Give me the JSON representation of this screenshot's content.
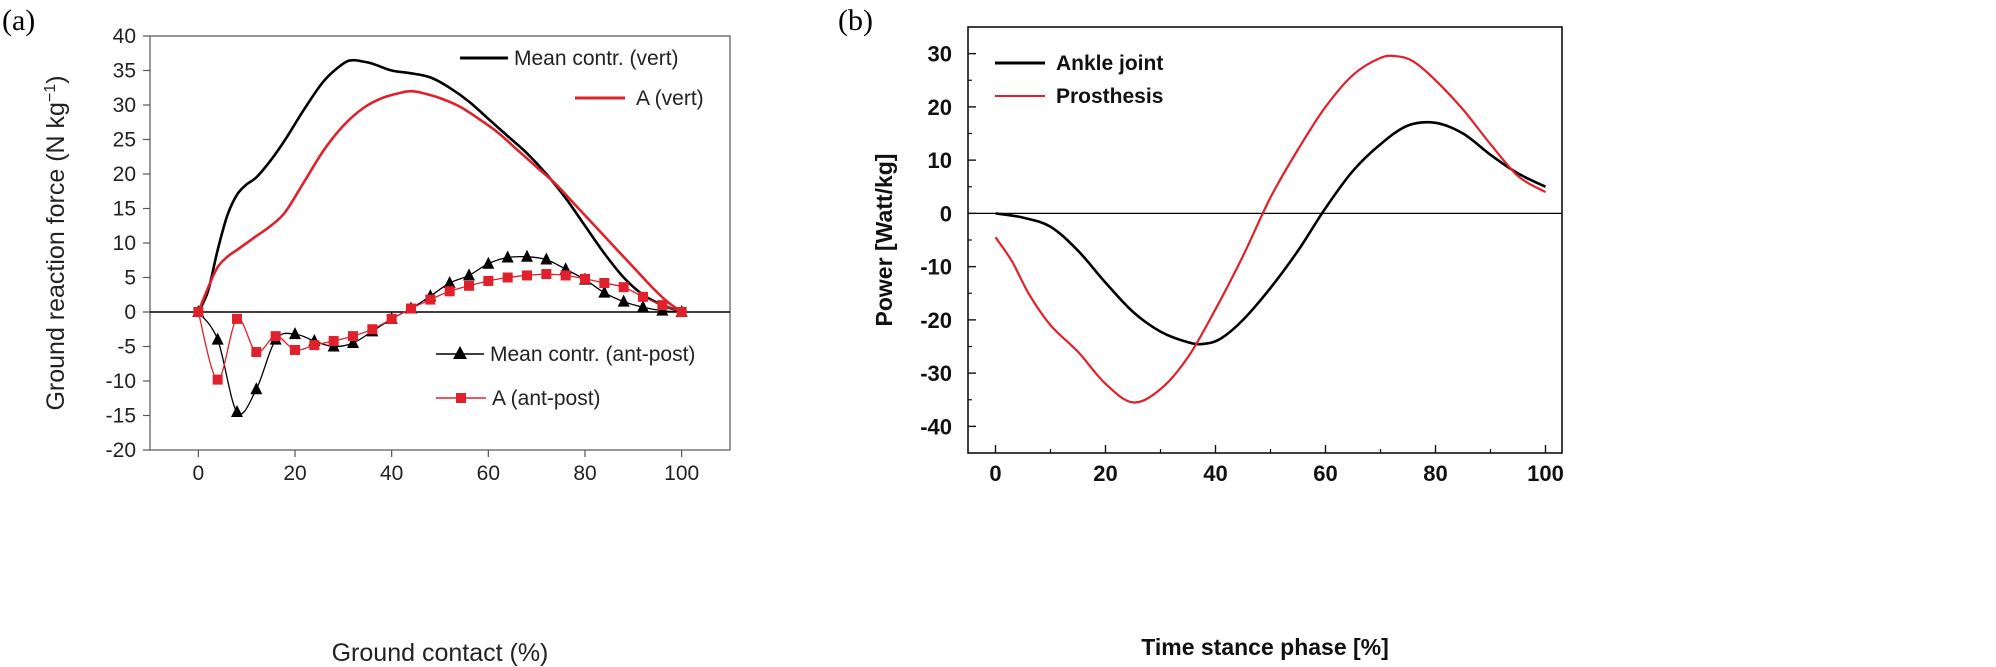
{
  "chart_data": [
    {
      "id": "a",
      "panel_label": "(a)",
      "type": "line",
      "title": "",
      "xlabel": "Ground contact (%)",
      "ylabel": "Ground reaction force (N kg",
      "ylabel_superscript": "−1",
      "ylabel_close": ")",
      "xlim": [
        -10,
        110
      ],
      "ylim": [
        -20,
        40
      ],
      "xticks": [
        0,
        20,
        40,
        60,
        80,
        100
      ],
      "yticks": [
        -20,
        -15,
        -10,
        -5,
        0,
        5,
        10,
        15,
        20,
        25,
        30,
        35,
        40
      ],
      "zero_line": true,
      "grid": false,
      "legend_placement": "top-right and lower-right",
      "series": [
        {
          "name": "Mean contr. (vert)",
          "color": "#000000",
          "marker": "none",
          "x": [
            0,
            2,
            4,
            6,
            8,
            10,
            12,
            15,
            18,
            22,
            26,
            30,
            32,
            34,
            36,
            40,
            44,
            48,
            52,
            56,
            60,
            64,
            68,
            72,
            76,
            80,
            84,
            88,
            92,
            96,
            100
          ],
          "values": [
            0,
            3,
            9,
            14,
            17,
            18.5,
            19.5,
            22,
            25,
            29.5,
            33.5,
            36,
            36.5,
            36.3,
            36,
            35,
            34.6,
            34,
            32.5,
            30.5,
            28,
            25.5,
            23,
            20,
            16.5,
            12.5,
            8.5,
            5,
            2.5,
            1,
            0
          ]
        },
        {
          "name": "A (vert)",
          "color": "#e0202a",
          "marker": "none",
          "x": [
            0,
            2,
            4,
            6,
            8,
            10,
            12,
            15,
            18,
            22,
            26,
            30,
            34,
            38,
            42,
            44,
            46,
            50,
            54,
            58,
            62,
            66,
            70,
            74,
            78,
            82,
            86,
            90,
            94,
            97,
            100
          ],
          "values": [
            0,
            3.5,
            6.5,
            8,
            9,
            10,
            11,
            12.5,
            14.5,
            19,
            23.5,
            27,
            29.5,
            31,
            31.8,
            32,
            31.8,
            31,
            29.8,
            28,
            26,
            23.5,
            21,
            18.5,
            15.5,
            12.5,
            9.5,
            6.5,
            3.5,
            1.5,
            0
          ]
        },
        {
          "name": "Mean contr. (ant-post)",
          "color": "#000000",
          "marker": "triangle",
          "x": [
            0,
            4,
            8,
            12,
            16,
            20,
            24,
            28,
            32,
            36,
            40,
            44,
            48,
            52,
            56,
            60,
            64,
            68,
            72,
            76,
            80,
            84,
            88,
            92,
            96,
            100
          ],
          "values": [
            0,
            -4,
            -14.5,
            -11.2,
            -4,
            -3.2,
            -4.2,
            -5,
            -4.5,
            -2.8,
            -1,
            0.5,
            2.3,
            4.2,
            5.3,
            7,
            7.9,
            8,
            7.6,
            6.2,
            4.7,
            2.8,
            1.5,
            0.7,
            0.2,
            0
          ]
        },
        {
          "name": "A (ant-post)",
          "color": "#e0202a",
          "marker": "square",
          "x": [
            0,
            4,
            8,
            12,
            16,
            20,
            24,
            28,
            32,
            36,
            40,
            44,
            48,
            52,
            56,
            60,
            64,
            68,
            72,
            76,
            80,
            84,
            88,
            92,
            96,
            100
          ],
          "values": [
            0,
            -9.8,
            -1,
            -5.8,
            -3.5,
            -5.5,
            -4.8,
            -4.2,
            -3.5,
            -2.5,
            -1,
            0.5,
            1.8,
            3,
            3.8,
            4.5,
            5,
            5.3,
            5.5,
            5.3,
            4.8,
            4.2,
            3.6,
            2.2,
            1,
            0
          ]
        }
      ]
    },
    {
      "id": "b",
      "panel_label": "(b)",
      "type": "line",
      "title": "",
      "xlabel": "Time stance phase [%]",
      "ylabel": "Power [Watt/kg]",
      "xlim": [
        -5,
        103
      ],
      "ylim": [
        -45,
        35
      ],
      "xticks": [
        0,
        20,
        40,
        60,
        80,
        100
      ],
      "yticks": [
        -40,
        -30,
        -20,
        -10,
        0,
        10,
        20,
        30
      ],
      "zero_line": true,
      "grid": false,
      "legend_placement": "top-left",
      "series": [
        {
          "name": "Ankle joint",
          "color": "#000000",
          "marker": "none",
          "x": [
            0,
            5,
            10,
            15,
            20,
            25,
            30,
            35,
            38,
            41,
            45,
            50,
            55,
            60,
            65,
            70,
            75,
            80,
            85,
            90,
            95,
            100
          ],
          "values": [
            0,
            -0.8,
            -2.5,
            -7,
            -13,
            -18.5,
            -22.2,
            -24.2,
            -24.5,
            -23.5,
            -20,
            -14,
            -7,
            1,
            8,
            13,
            16.5,
            17,
            15,
            11,
            7.5,
            5
          ]
        },
        {
          "name": "Prosthesis",
          "color": "#e0202a",
          "marker": "none",
          "x": [
            0,
            3,
            6,
            10,
            15,
            20,
            25,
            30,
            35,
            40,
            45,
            50,
            55,
            60,
            65,
            70,
            73,
            76,
            80,
            85,
            90,
            95,
            100
          ],
          "values": [
            -4.5,
            -9,
            -15,
            -21,
            -26,
            -32,
            -35.5,
            -33,
            -27,
            -18,
            -8,
            3,
            12,
            20,
            26,
            29.2,
            29.5,
            28.5,
            25,
            19.5,
            13,
            7,
            4
          ]
        }
      ]
    }
  ]
}
